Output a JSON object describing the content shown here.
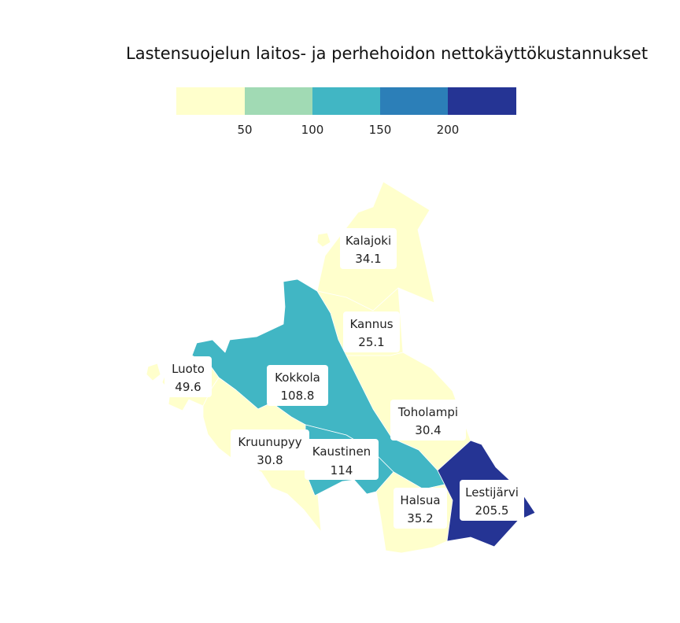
{
  "title": "Lastensuojelun laitos- ja perhehoidon nettokäyttökustannukset",
  "legend": {
    "colors": [
      "#ffffcc",
      "#a1dab4",
      "#41b6c4",
      "#2c7fb8",
      "#253494"
    ],
    "breaks": [
      "50",
      "100",
      "150",
      "200"
    ]
  },
  "municipalities": [
    {
      "name": "Kalajoki",
      "value": "34.1",
      "color": "#ffffcc"
    },
    {
      "name": "Kannus",
      "value": "25.1",
      "color": "#ffffcc"
    },
    {
      "name": "Luoto",
      "value": "49.6",
      "color": "#ffffcc"
    },
    {
      "name": "Kokkola",
      "value": "108.8",
      "color": "#41b6c4"
    },
    {
      "name": "Toholampi",
      "value": "30.4",
      "color": "#ffffcc"
    },
    {
      "name": "Kruunupyy",
      "value": "30.8",
      "color": "#ffffcc"
    },
    {
      "name": "Kaustinen",
      "value": "114",
      "color": "#41b6c4"
    },
    {
      "name": "Halsua",
      "value": "35.2",
      "color": "#ffffcc"
    },
    {
      "name": "Lestijärvi",
      "value": "205.5",
      "color": "#253494"
    }
  ]
}
